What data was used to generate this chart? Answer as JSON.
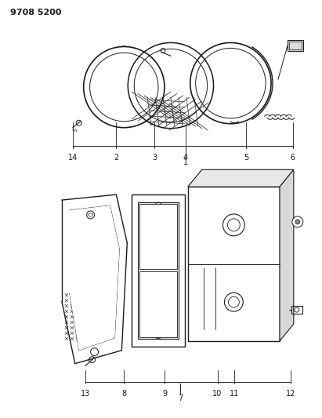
{
  "title": "9708 5200",
  "bg_color": "#ffffff",
  "lc": "#1a1a1a",
  "fig_width": 4.11,
  "fig_height": 5.33,
  "dpi": 100
}
